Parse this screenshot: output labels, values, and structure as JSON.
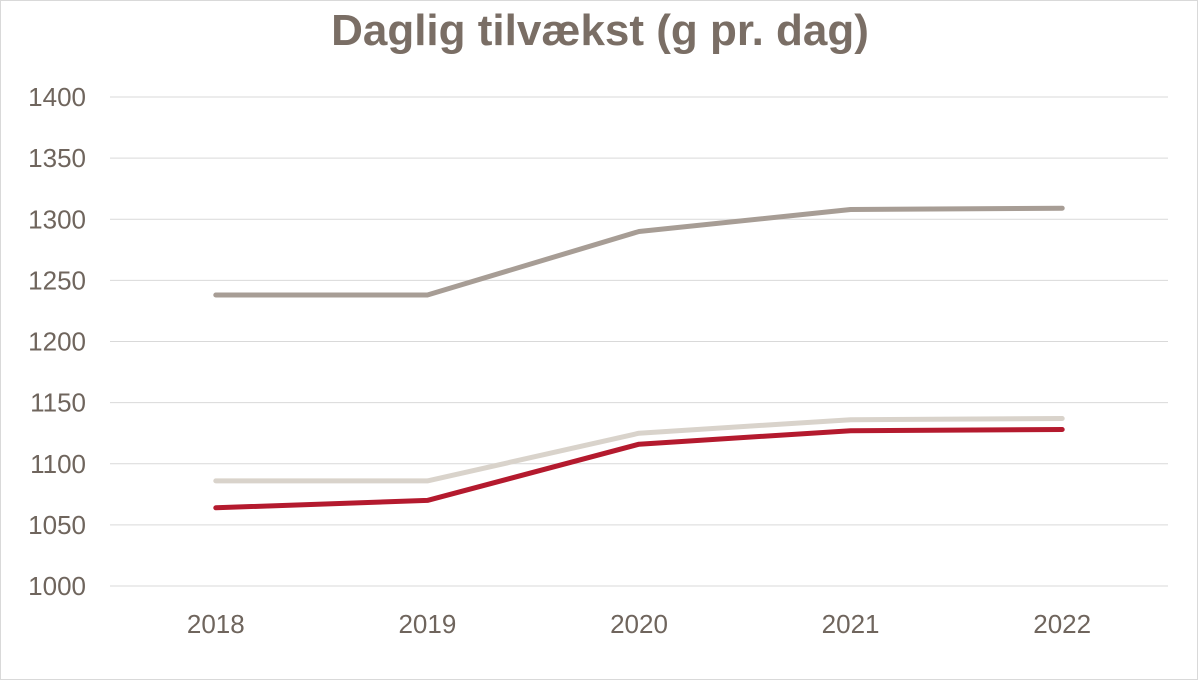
{
  "chart_data": {
    "type": "line",
    "title": "Daglig tilvækst (g pr. dag)",
    "xlabel": "",
    "ylabel": "",
    "x": [
      "2018",
      "2019",
      "2020",
      "2021",
      "2022"
    ],
    "ylim": [
      1000,
      1400
    ],
    "yticks": [
      1000,
      1050,
      1100,
      1150,
      1200,
      1250,
      1300,
      1350,
      1400
    ],
    "grid": true,
    "series": [
      {
        "color": "#a79d95",
        "values": [
          1238,
          1238,
          1290,
          1308,
          1309
        ]
      },
      {
        "color": "#d9d3cb",
        "values": [
          1086,
          1086,
          1125,
          1136,
          1137
        ]
      },
      {
        "color": "#b41a2e",
        "values": [
          1064,
          1070,
          1116,
          1127,
          1128
        ]
      }
    ]
  }
}
